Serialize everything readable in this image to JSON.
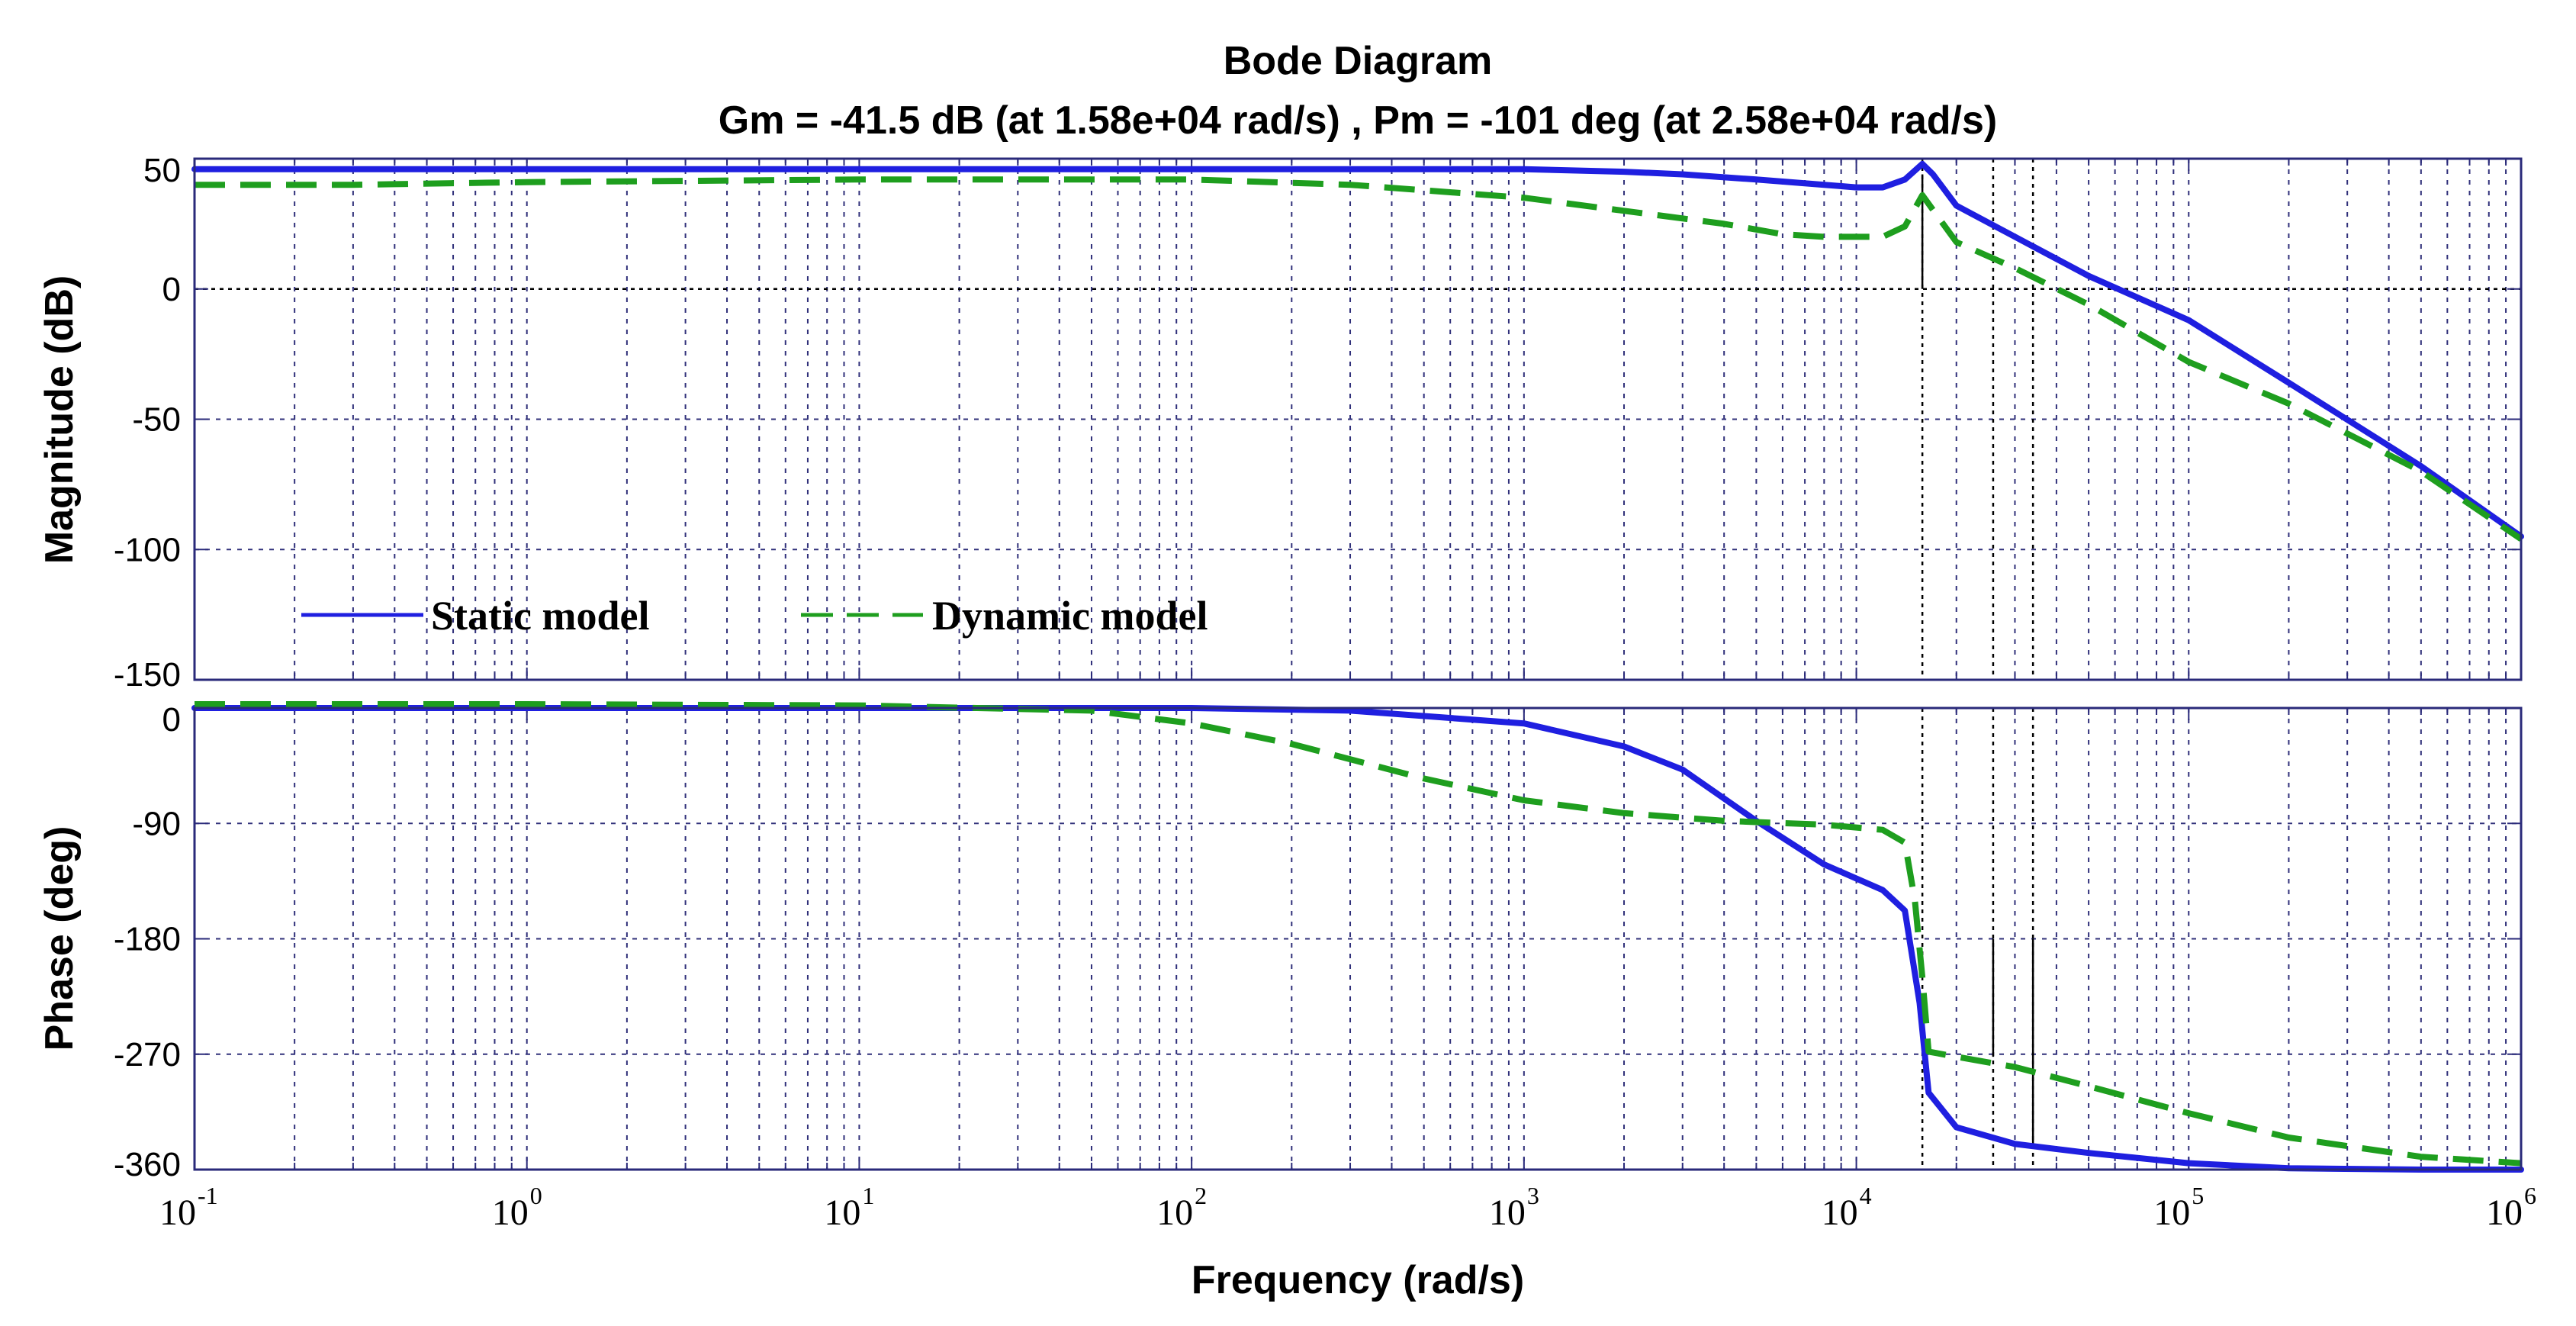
{
  "chart_data": {
    "type": "line",
    "title": "Bode Diagram",
    "subtitle": "Gm = -41.5 dB (at 1.58e+04 rad/s) ,  Pm = -101 deg (at 2.58e+04 rad/s)",
    "xlabel": "Frequency  (rad/s)",
    "xscale": "log",
    "xlim": [
      0.1,
      1000000
    ],
    "x_tick_labels": [
      {
        "base": "10",
        "exp": "-1"
      },
      {
        "base": "10",
        "exp": "0"
      },
      {
        "base": "10",
        "exp": "1"
      },
      {
        "base": "10",
        "exp": "2"
      },
      {
        "base": "10",
        "exp": "3"
      },
      {
        "base": "10",
        "exp": "4"
      },
      {
        "base": "10",
        "exp": "5"
      },
      {
        "base": "10",
        "exp": "6"
      }
    ],
    "legend": {
      "position": "lower-left of magnitude panel",
      "entries": [
        "Static model",
        "Dynamic model"
      ]
    },
    "margin_markers": [
      15800,
      25800,
      34000
    ],
    "panels": [
      {
        "name": "magnitude",
        "ylabel": "Magnitude (dB)",
        "ylim": [
          -150,
          50
        ],
        "yticks": [
          50,
          0,
          -50,
          -100,
          -150
        ],
        "y_tick_labels": [
          "50",
          "0",
          "-50",
          "-100",
          "-150"
        ],
        "series": [
          {
            "name": "Static model",
            "color": "#1f1fe0",
            "style": "solid",
            "points": [
              [
                0.1,
                46
              ],
              [
                1,
                46
              ],
              [
                10,
                46
              ],
              [
                100,
                46
              ],
              [
                1000,
                46
              ],
              [
                2000,
                45
              ],
              [
                3000,
                44
              ],
              [
                5000,
                42
              ],
              [
                8000,
                40
              ],
              [
                10000,
                39
              ],
              [
                12000,
                39
              ],
              [
                14000,
                42
              ],
              [
                15800,
                48
              ],
              [
                17000,
                44
              ],
              [
                20000,
                32
              ],
              [
                30000,
                20
              ],
              [
                50000,
                5
              ],
              [
                100000,
                -12
              ],
              [
                200000,
                -36
              ],
              [
                500000,
                -68
              ],
              [
                1000000,
                -95
              ]
            ]
          },
          {
            "name": "Dynamic model",
            "color": "#1e9e1e",
            "style": "dashed",
            "points": [
              [
                0.1,
                40
              ],
              [
                0.3,
                40
              ],
              [
                1,
                41
              ],
              [
                10,
                42
              ],
              [
                100,
                42
              ],
              [
                300,
                40
              ],
              [
                1000,
                35
              ],
              [
                2000,
                30
              ],
              [
                4000,
                25
              ],
              [
                6000,
                21
              ],
              [
                8000,
                20
              ],
              [
                10000,
                20
              ],
              [
                12000,
                20
              ],
              [
                14000,
                24
              ],
              [
                15800,
                36
              ],
              [
                18000,
                26
              ],
              [
                20000,
                18
              ],
              [
                30000,
                8
              ],
              [
                50000,
                -6
              ],
              [
                100000,
                -28
              ],
              [
                200000,
                -44
              ],
              [
                500000,
                -70
              ],
              [
                1000000,
                -96
              ]
            ]
          }
        ]
      },
      {
        "name": "phase",
        "ylabel": "Phase (deg)",
        "ylim": [
          -360,
          0
        ],
        "yticks": [
          0,
          -90,
          -180,
          -270,
          -360
        ],
        "y_tick_labels": [
          "0",
          "-90",
          "-180",
          "-270",
          "-360"
        ],
        "series": [
          {
            "name": "Static model",
            "color": "#1f1fe0",
            "style": "solid",
            "points": [
              [
                0.1,
                0
              ],
              [
                10,
                0
              ],
              [
                100,
                0
              ],
              [
                300,
                -2
              ],
              [
                1000,
                -12
              ],
              [
                2000,
                -30
              ],
              [
                3000,
                -48
              ],
              [
                5000,
                -88
              ],
              [
                8000,
                -122
              ],
              [
                12000,
                -142
              ],
              [
                14000,
                -158
              ],
              [
                15500,
                -230
              ],
              [
                16500,
                -300
              ],
              [
                20000,
                -327
              ],
              [
                30000,
                -340
              ],
              [
                50000,
                -347
              ],
              [
                100000,
                -355
              ],
              [
                200000,
                -359
              ],
              [
                500000,
                -360
              ],
              [
                1000000,
                -360
              ]
            ]
          },
          {
            "name": "Dynamic model",
            "color": "#1e9e1e",
            "style": "dashed",
            "points": [
              [
                0.1,
                3
              ],
              [
                1,
                3
              ],
              [
                10,
                2
              ],
              [
                50,
                -2
              ],
              [
                100,
                -12
              ],
              [
                200,
                -28
              ],
              [
                500,
                -55
              ],
              [
                1000,
                -72
              ],
              [
                2000,
                -82
              ],
              [
                4000,
                -88
              ],
              [
                8000,
                -91
              ],
              [
                12000,
                -95
              ],
              [
                14000,
                -105
              ],
              [
                15000,
                -150
              ],
              [
                15800,
                -210
              ],
              [
                16500,
                -268
              ],
              [
                20000,
                -272
              ],
              [
                30000,
                -280
              ],
              [
                50000,
                -295
              ],
              [
                100000,
                -316
              ],
              [
                200000,
                -335
              ],
              [
                500000,
                -350
              ],
              [
                1000000,
                -355
              ]
            ]
          }
        ]
      }
    ]
  }
}
